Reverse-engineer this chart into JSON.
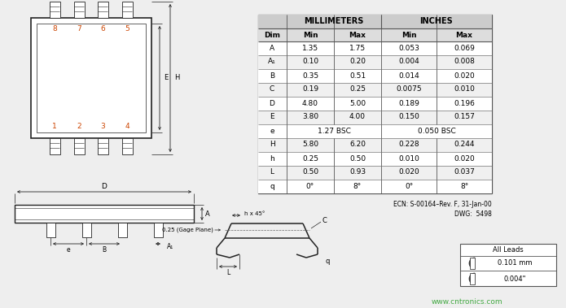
{
  "bg_color": "#eeeeee",
  "table_header1": "MILLIMETERS",
  "table_header2": "INCHES",
  "col_headers": [
    "Dim",
    "Min",
    "Max",
    "Min",
    "Max"
  ],
  "rows": [
    [
      "A",
      "1.35",
      "1.75",
      "0.053",
      "0.069"
    ],
    [
      "A₁",
      "0.10",
      "0.20",
      "0.004",
      "0.008"
    ],
    [
      "B",
      "0.35",
      "0.51",
      "0.014",
      "0.020"
    ],
    [
      "C",
      "0.19",
      "0.25",
      "0.0075",
      "0.010"
    ],
    [
      "D",
      "4.80",
      "5.00",
      "0.189",
      "0.196"
    ],
    [
      "E",
      "3.80",
      "4.00",
      "0.150",
      "0.157"
    ],
    [
      "e",
      "1.27 BSC",
      "",
      "0.050 BSC",
      ""
    ],
    [
      "H",
      "5.80",
      "6.20",
      "0.228",
      "0.244"
    ],
    [
      "h",
      "0.25",
      "0.50",
      "0.010",
      "0.020"
    ],
    [
      "L",
      "0.50",
      "0.93",
      "0.020",
      "0.037"
    ],
    [
      "q",
      "0°",
      "8°",
      "0°",
      "8°"
    ]
  ],
  "ecn_text": "ECN: S-00164–Rev. F, 31-Jan-00",
  "dwg_text": "DWG:  5498",
  "watermark": "www.cntronics.com",
  "all_leads": "All Leads",
  "lead_mm": "0.101 mm",
  "lead_in": "0.004\"",
  "pin_color": "#cc4400",
  "line_color": "#222222",
  "table_line_color": "#555555",
  "header_bg": "#cccccc",
  "header2_bg": "#dddddd",
  "row_bg_even": "#ffffff",
  "row_bg_odd": "#f0f0f0"
}
